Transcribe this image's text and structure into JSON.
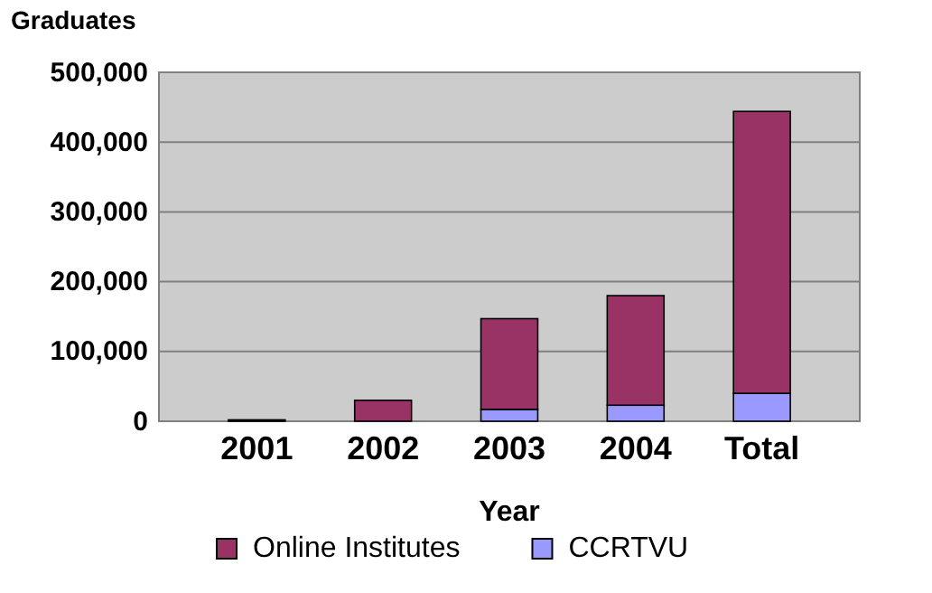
{
  "chart_data": {
    "type": "bar",
    "stacked": true,
    "ylabel": "Graduates",
    "xlabel": "Year",
    "categories": [
      "2001",
      "2002",
      "2003",
      "2004",
      "Total"
    ],
    "series": [
      {
        "name": "CCRTVU",
        "color": "#9999ff",
        "values": [
          0,
          0,
          17000,
          23000,
          40000
        ]
      },
      {
        "name": "Online Institutes",
        "color": "#993366",
        "values": [
          2000,
          30000,
          130000,
          157000,
          404000
        ]
      }
    ],
    "ylim": [
      0,
      500000
    ],
    "yticks": [
      {
        "value": 0,
        "label": "0"
      },
      {
        "value": 100000,
        "label": "100,000"
      },
      {
        "value": 200000,
        "label": "200,000"
      },
      {
        "value": 300000,
        "label": "300,000"
      },
      {
        "value": 400000,
        "label": "400,000"
      },
      {
        "value": 500000,
        "label": "500,000"
      }
    ],
    "grid": "y",
    "legend": "bottom"
  }
}
